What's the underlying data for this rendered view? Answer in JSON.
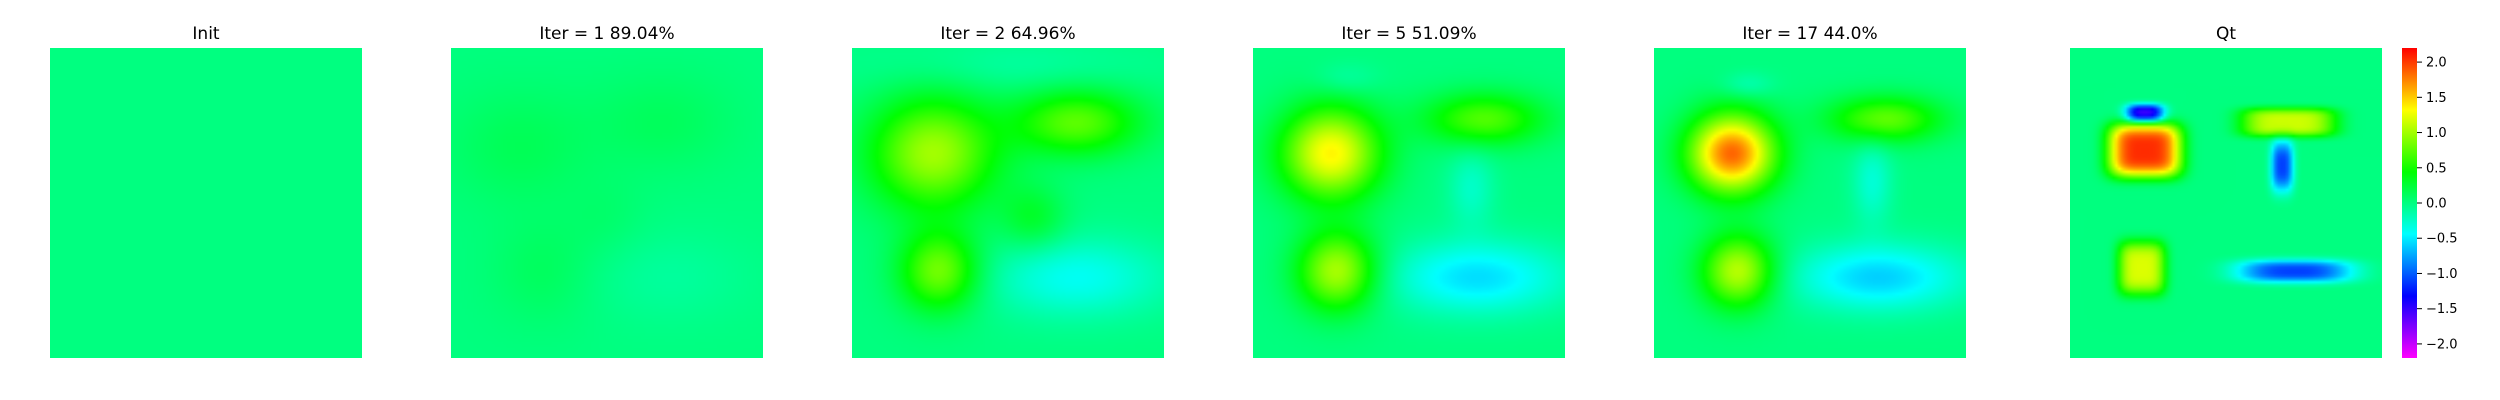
{
  "chart_data": {
    "type": "heatmap",
    "colormap": "gist_rainbow",
    "colorbar": {
      "range": [
        -2.2,
        2.2
      ],
      "ticks": [
        2.0,
        1.5,
        1.0,
        0.5,
        0.0,
        -0.5,
        -1.0,
        -1.5,
        -2.0
      ],
      "tick_labels": [
        "2.0",
        "1.5",
        "1.0",
        "0.5",
        "0.0",
        "−0.5",
        "−1.0",
        "−1.5",
        "−2.0"
      ]
    },
    "panels": [
      {
        "title": "Init",
        "base": 0.0,
        "blobs": []
      },
      {
        "title": "Iter = 1    89.04%",
        "base": 0.0,
        "blobs": [
          {
            "cx": 0.22,
            "cy": 0.32,
            "rx": 0.22,
            "ry": 0.18,
            "p": 2,
            "a": 0.14
          },
          {
            "cx": 0.68,
            "cy": 0.24,
            "rx": 0.22,
            "ry": 0.15,
            "p": 2,
            "a": 0.12
          },
          {
            "cx": 0.3,
            "cy": 0.72,
            "rx": 0.16,
            "ry": 0.16,
            "p": 2,
            "a": 0.12
          },
          {
            "cx": 0.7,
            "cy": 0.74,
            "rx": 0.26,
            "ry": 0.14,
            "p": 2,
            "a": -0.1
          },
          {
            "cx": 0.5,
            "cy": 0.55,
            "rx": 0.12,
            "ry": 0.12,
            "p": 2,
            "a": 0.06
          }
        ]
      },
      {
        "title": "Iter = 2    64.96%",
        "base": 0.0,
        "blobs": [
          {
            "cx": 0.26,
            "cy": 0.34,
            "rx": 0.19,
            "ry": 0.17,
            "p": 2,
            "a": 1.0
          },
          {
            "cx": 0.72,
            "cy": 0.24,
            "rx": 0.19,
            "ry": 0.1,
            "p": 2,
            "a": 0.75
          },
          {
            "cx": 0.28,
            "cy": 0.72,
            "rx": 0.12,
            "ry": 0.12,
            "p": 2,
            "a": 0.85
          },
          {
            "cx": 0.72,
            "cy": 0.74,
            "rx": 0.27,
            "ry": 0.12,
            "p": 2,
            "a": -0.4
          },
          {
            "cx": 0.58,
            "cy": 0.55,
            "rx": 0.1,
            "ry": 0.1,
            "p": 2,
            "a": 0.3
          },
          {
            "cx": 0.5,
            "cy": 0.06,
            "rx": 0.45,
            "ry": 0.08,
            "p": 2,
            "a": -0.12
          }
        ]
      },
      {
        "title": "Iter = 5    51.09%",
        "base": 0.0,
        "blobs": [
          {
            "cx": 0.25,
            "cy": 0.34,
            "rx": 0.15,
            "ry": 0.14,
            "p": 2,
            "a": 1.35
          },
          {
            "cx": 0.74,
            "cy": 0.23,
            "rx": 0.18,
            "ry": 0.08,
            "p": 2,
            "a": 0.72
          },
          {
            "cx": 0.27,
            "cy": 0.72,
            "rx": 0.12,
            "ry": 0.12,
            "p": 2,
            "a": 1.05
          },
          {
            "cx": 0.72,
            "cy": 0.74,
            "rx": 0.27,
            "ry": 0.11,
            "p": 2,
            "a": -0.55
          },
          {
            "cx": 0.7,
            "cy": 0.45,
            "rx": 0.07,
            "ry": 0.12,
            "p": 2,
            "a": -0.25
          },
          {
            "cx": 0.3,
            "cy": 0.1,
            "rx": 0.1,
            "ry": 0.05,
            "p": 2,
            "a": -0.15
          }
        ]
      },
      {
        "title": "Iter = 17    44.0%",
        "base": 0.0,
        "blobs": [
          {
            "cx": 0.25,
            "cy": 0.34,
            "rx": 0.13,
            "ry": 0.12,
            "p": 2,
            "a": 1.85
          },
          {
            "cx": 0.74,
            "cy": 0.23,
            "rx": 0.17,
            "ry": 0.07,
            "p": 2,
            "a": 0.78
          },
          {
            "cx": 0.27,
            "cy": 0.72,
            "rx": 0.11,
            "ry": 0.11,
            "p": 2,
            "a": 1.1
          },
          {
            "cx": 0.72,
            "cy": 0.74,
            "rx": 0.26,
            "ry": 0.1,
            "p": 2,
            "a": -0.6
          },
          {
            "cx": 0.7,
            "cy": 0.43,
            "rx": 0.06,
            "ry": 0.13,
            "p": 2,
            "a": -0.3
          },
          {
            "cx": 0.3,
            "cy": 0.12,
            "rx": 0.08,
            "ry": 0.04,
            "p": 2,
            "a": -0.2
          }
        ]
      },
      {
        "title": "Qt",
        "base": 0.0,
        "blobs": [
          {
            "cx": 0.24,
            "cy": 0.33,
            "rx": 0.115,
            "ry": 0.085,
            "p": 4,
            "a": 2.05
          },
          {
            "cx": 0.24,
            "cy": 0.21,
            "rx": 0.06,
            "ry": 0.028,
            "p": 3,
            "a": -1.55
          },
          {
            "cx": 0.7,
            "cy": 0.24,
            "rx": 0.15,
            "ry": 0.045,
            "p": 4,
            "a": 1.15
          },
          {
            "cx": 0.68,
            "cy": 0.38,
            "rx": 0.035,
            "ry": 0.08,
            "p": 3,
            "a": -1.1
          },
          {
            "cx": 0.23,
            "cy": 0.71,
            "rx": 0.075,
            "ry": 0.085,
            "p": 4,
            "a": 1.2
          },
          {
            "cx": 0.72,
            "cy": 0.72,
            "rx": 0.18,
            "ry": 0.035,
            "p": 3,
            "a": -1.1
          }
        ]
      }
    ]
  }
}
